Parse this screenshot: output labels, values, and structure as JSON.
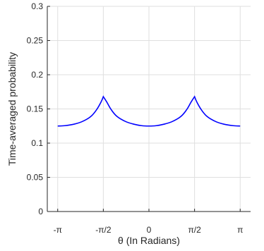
{
  "chart_data": {
    "type": "line",
    "title": "",
    "xlabel": "θ (In Radians)",
    "ylabel": "Time-averaged probability",
    "xlim": [
      -3.5,
      3.5
    ],
    "ylim": [
      0,
      0.3
    ],
    "x_ticks": [
      {
        "value": -3.14159,
        "label": "-π"
      },
      {
        "value": -1.5708,
        "label": "-π/2"
      },
      {
        "value": 0,
        "label": "0"
      },
      {
        "value": 1.5708,
        "label": "π/2"
      },
      {
        "value": 3.14159,
        "label": "π"
      }
    ],
    "y_ticks": [
      {
        "value": 0,
        "label": "0"
      },
      {
        "value": 0.05,
        "label": "0.05"
      },
      {
        "value": 0.1,
        "label": "0.1"
      },
      {
        "value": 0.15,
        "label": "0.15"
      },
      {
        "value": 0.2,
        "label": "0.2"
      },
      {
        "value": 0.25,
        "label": "0.25"
      },
      {
        "value": 0.3,
        "label": "0.3"
      }
    ],
    "grid": true,
    "series": [
      {
        "color": "#0000ff",
        "x": [
          -3.1416,
          -2.9,
          -2.6,
          -2.3,
          -2.0,
          -1.8,
          -1.65,
          -1.5708,
          -1.45,
          -1.3,
          -1.1,
          -0.8,
          -0.5,
          -0.25,
          0,
          0.25,
          0.5,
          0.8,
          1.1,
          1.3,
          1.45,
          1.5708,
          1.65,
          1.8,
          2.0,
          2.3,
          2.6,
          2.9,
          3.1416
        ],
        "y": [
          0.125,
          0.1255,
          0.1275,
          0.1315,
          0.139,
          0.149,
          0.16,
          0.168,
          0.16,
          0.149,
          0.139,
          0.1315,
          0.1275,
          0.1255,
          0.125,
          0.1255,
          0.1275,
          0.1315,
          0.139,
          0.149,
          0.16,
          0.168,
          0.16,
          0.149,
          0.139,
          0.1315,
          0.1275,
          0.1255,
          0.125
        ]
      }
    ]
  }
}
